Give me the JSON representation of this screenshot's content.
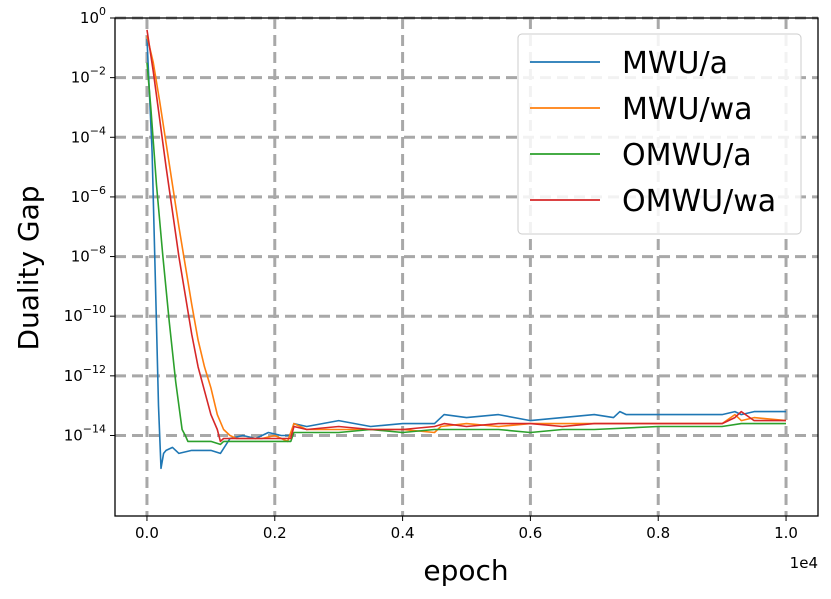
{
  "chart_data": {
    "type": "line",
    "title": "",
    "xlabel": "epoch",
    "ylabel": "Duality Gap",
    "x_offset_label": "1e4",
    "x_range": [
      -500,
      10500
    ],
    "y_log_range": [
      -16.7,
      0.0
    ],
    "y_scale": "log",
    "grid": true,
    "legend_position": "top-right",
    "x_ticks": [
      {
        "value": 0,
        "label": "0.0"
      },
      {
        "value": 2000,
        "label": "0.2"
      },
      {
        "value": 4000,
        "label": "0.4"
      },
      {
        "value": 6000,
        "label": "0.6"
      },
      {
        "value": 8000,
        "label": "0.8"
      },
      {
        "value": 10000,
        "label": "1.0"
      }
    ],
    "y_ticks": [
      {
        "exp": 0,
        "base": "10",
        "sup": "0"
      },
      {
        "exp": -2,
        "base": "10",
        "sup": "−2"
      },
      {
        "exp": -4,
        "base": "10",
        "sup": "−4"
      },
      {
        "exp": -6,
        "base": "10",
        "sup": "−6"
      },
      {
        "exp": -8,
        "base": "10",
        "sup": "−8"
      },
      {
        "exp": -10,
        "base": "10",
        "sup": "−10"
      },
      {
        "exp": -12,
        "base": "10",
        "sup": "−12"
      },
      {
        "exp": -14,
        "base": "10",
        "sup": "−14"
      }
    ],
    "series": [
      {
        "name": "MWU/a",
        "color": "#1f77b4",
        "x": [
          0,
          80,
          140,
          180,
          220,
          260,
          300,
          400,
          500,
          700,
          1000,
          1150,
          1300,
          1500,
          1700,
          1900,
          2100,
          2250,
          2300,
          2500,
          3000,
          3500,
          4000,
          4500,
          4600,
          4650,
          5000,
          5500,
          6000,
          6500,
          7000,
          7300,
          7400,
          7500,
          8000,
          8500,
          9000,
          9200,
          9300,
          9500,
          10000
        ],
        "log_y": [
          -0.7,
          -4.5,
          -9.5,
          -13.0,
          -15.1,
          -14.6,
          -14.5,
          -14.4,
          -14.6,
          -14.5,
          -14.5,
          -14.6,
          -14.1,
          -14.0,
          -14.1,
          -13.9,
          -14.0,
          -14.0,
          -13.6,
          -13.7,
          -13.5,
          -13.7,
          -13.6,
          -13.6,
          -13.4,
          -13.3,
          -13.4,
          -13.3,
          -13.5,
          -13.4,
          -13.3,
          -13.4,
          -13.2,
          -13.3,
          -13.3,
          -13.3,
          -13.3,
          -13.2,
          -13.3,
          -13.2,
          -13.2
        ]
      },
      {
        "name": "MWU/wa",
        "color": "#ff7f0e",
        "x": [
          0,
          100,
          200,
          300,
          400,
          500,
          600,
          700,
          800,
          900,
          1000,
          1100,
          1200,
          1300,
          1400,
          1600,
          1800,
          2000,
          2200,
          2300,
          2500,
          3000,
          3500,
          4000,
          4500,
          4600,
          5000,
          5500,
          6000,
          7000,
          8000,
          9000,
          9200,
          9300,
          9500,
          10000
        ],
        "log_y": [
          -0.6,
          -1.5,
          -2.8,
          -4.2,
          -5.6,
          -7.0,
          -8.3,
          -9.6,
          -10.8,
          -11.7,
          -12.4,
          -13.3,
          -13.8,
          -14.0,
          -14.1,
          -14.1,
          -14.1,
          -14.0,
          -14.2,
          -13.6,
          -13.8,
          -13.8,
          -13.8,
          -13.8,
          -13.9,
          -13.7,
          -13.6,
          -13.7,
          -13.6,
          -13.6,
          -13.6,
          -13.6,
          -13.3,
          -13.5,
          -13.4,
          -13.5
        ]
      },
      {
        "name": "OMWU/a",
        "color": "#2ca02c",
        "x": [
          0,
          60,
          150,
          250,
          350,
          450,
          550,
          600,
          640,
          680,
          1000,
          1150,
          1200,
          1500,
          1800,
          2000,
          2250,
          2300,
          2500,
          3000,
          3500,
          4000,
          4500,
          4650,
          5000,
          5500,
          6000,
          6500,
          7000,
          8000,
          9000,
          9300,
          9500,
          10000
        ],
        "log_y": [
          -1.5,
          -3.0,
          -5.6,
          -8.0,
          -10.2,
          -12.2,
          -13.8,
          -14.0,
          -14.2,
          -14.2,
          -14.2,
          -14.3,
          -14.2,
          -14.2,
          -14.2,
          -14.2,
          -14.2,
          -13.9,
          -13.9,
          -13.9,
          -13.8,
          -13.9,
          -13.8,
          -13.8,
          -13.8,
          -13.8,
          -13.9,
          -13.8,
          -13.8,
          -13.7,
          -13.7,
          -13.6,
          -13.6,
          -13.6
        ]
      },
      {
        "name": "OMWU/wa",
        "color": "#d62728",
        "x": [
          0,
          100,
          200,
          300,
          400,
          500,
          600,
          700,
          800,
          900,
          1000,
          1100,
          1150,
          1200,
          1300,
          1500,
          1800,
          2000,
          2250,
          2300,
          2500,
          3000,
          3500,
          4000,
          4500,
          4650,
          5000,
          5500,
          6000,
          6500,
          7000,
          8000,
          9000,
          9200,
          9300,
          9500,
          10000
        ],
        "log_y": [
          -0.4,
          -1.8,
          -3.4,
          -5.0,
          -6.5,
          -8.0,
          -9.3,
          -10.6,
          -11.7,
          -12.5,
          -13.3,
          -13.8,
          -14.2,
          -14.1,
          -14.1,
          -14.1,
          -14.1,
          -14.1,
          -14.1,
          -13.7,
          -13.8,
          -13.7,
          -13.8,
          -13.8,
          -13.7,
          -13.6,
          -13.7,
          -13.6,
          -13.6,
          -13.7,
          -13.6,
          -13.6,
          -13.6,
          -13.4,
          -13.2,
          -13.5,
          -13.5
        ]
      }
    ]
  }
}
